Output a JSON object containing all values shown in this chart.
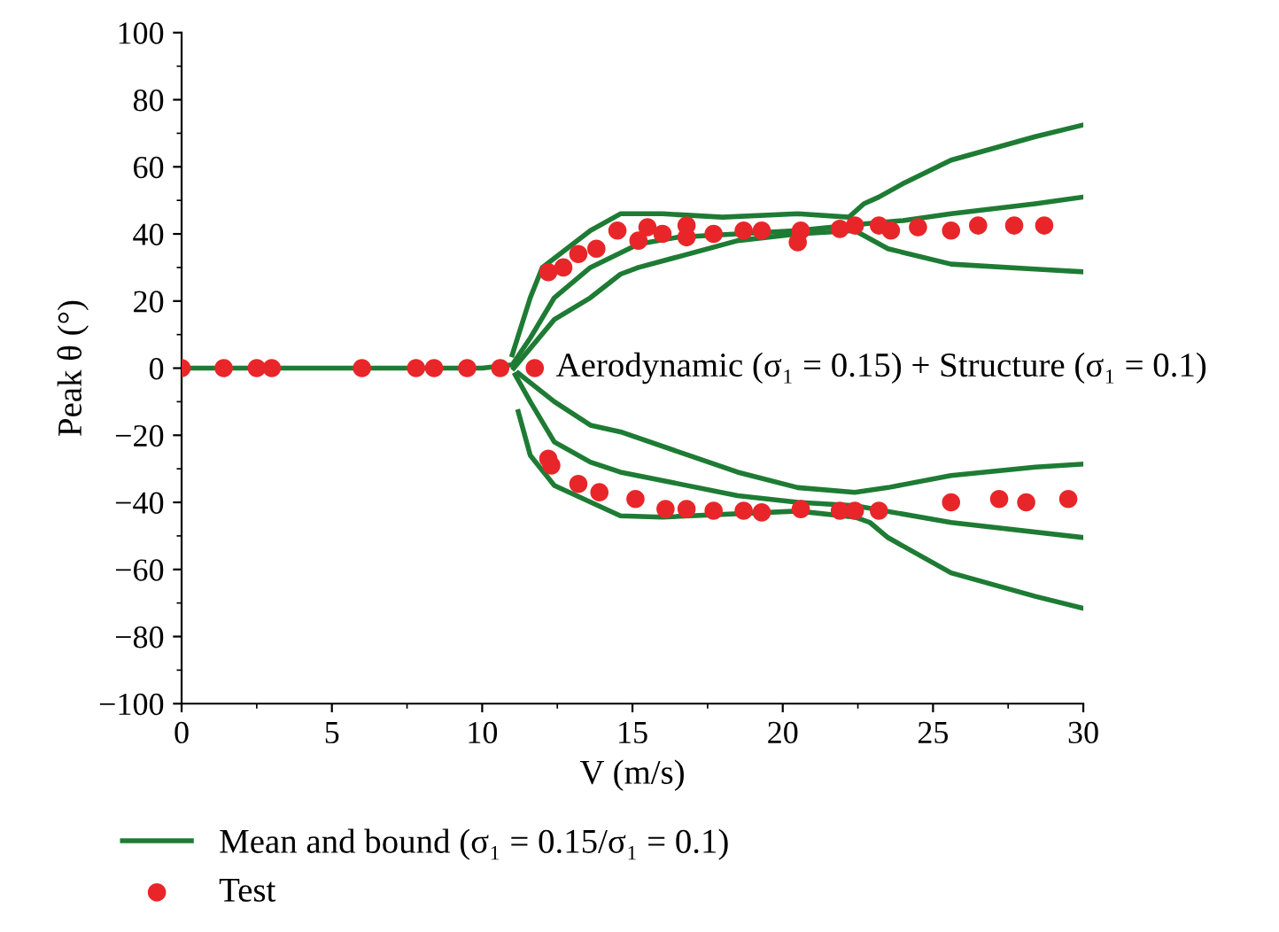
{
  "chart_data": {
    "type": "line",
    "xlabel": "V (m/s)",
    "ylabel": "Peak θ (°)",
    "xlim": [
      0,
      30
    ],
    "xticks": [
      0,
      5,
      10,
      15,
      20,
      25,
      30
    ],
    "ylim": [
      -100,
      100
    ],
    "yticks": [
      -100,
      -80,
      -60,
      -40,
      -20,
      0,
      20,
      40,
      60,
      80,
      100
    ],
    "grid": false,
    "legend": "bottom",
    "marker": "none",
    "line_style": "solid",
    "annotations": [
      "Aerodynamic (σ₁ = 0.15) + Structure (σ₁ = 0.1)"
    ],
    "series": [
      {
        "name": "Mean and bound (σ₁ = 0.15/σ₁ = 0.1)",
        "color": "#1e7b34",
        "x": [
          0,
          5,
          10,
          11,
          11.6,
          12.4,
          13.6,
          15.2,
          16.5,
          18.5,
          20.5,
          22.7,
          24,
          25.6,
          28.4,
          30
        ],
        "values": [
          0,
          0,
          0,
          1,
          9,
          21,
          30,
          37,
          39,
          40,
          41,
          43,
          44,
          46,
          49,
          51
        ]
      },
      {
        "color": "#1e7b34",
        "x": [
          11,
          11.6,
          12,
          13.6,
          14.6,
          16,
          18,
          20.5,
          22.2,
          22.7,
          23.2,
          24,
          25.6,
          28.4,
          30
        ],
        "values": [
          4,
          21,
          30,
          41,
          46,
          46,
          45,
          46,
          45,
          49,
          51,
          55,
          62,
          69,
          72.5
        ]
      },
      {
        "color": "#1e7b34",
        "x": [
          11.05,
          12.4,
          13.6,
          14.6,
          15.2,
          18.5,
          20.5,
          22.4,
          23.5,
          25.6,
          28.4,
          30
        ],
        "values": [
          0,
          14.5,
          21,
          28,
          30,
          38,
          40,
          41,
          35.6,
          31,
          29.5,
          28.7
        ]
      },
      {
        "color": "#1e7b34",
        "x": [
          11.1,
          11.6,
          12.4,
          13.6,
          14.6,
          18.5,
          20.5,
          22.4,
          25.6,
          30
        ],
        "values": [
          -2,
          -10,
          -22,
          -28,
          -31,
          -38,
          -40,
          -41,
          -46,
          -50.5
        ]
      },
      {
        "color": "#1e7b34",
        "x": [
          11.2,
          11.6,
          12.4,
          14.6,
          16,
          20.5,
          22.4,
          22.9,
          23.5,
          25.6,
          28.4,
          30
        ],
        "values": [
          -13,
          -26,
          -35,
          -44,
          -44.4,
          -42.6,
          -44.4,
          -46,
          -50.5,
          -61,
          -68,
          -71.6
        ]
      },
      {
        "color": "#1e7b34",
        "x": [
          11.2,
          12.4,
          13.6,
          14.6,
          18.5,
          20.5,
          22.4,
          23.5,
          25.6,
          28.4,
          30
        ],
        "values": [
          -1.5,
          -10,
          -17,
          -19,
          -31,
          -35.6,
          -37,
          -35.6,
          -32,
          -29.5,
          -28.6
        ]
      },
      {
        "name": "Test",
        "type": "scatter",
        "marker": "circle",
        "color": "#e8262a",
        "x": [
          0,
          1.4,
          2.5,
          3.0,
          6.0,
          7.8,
          8.4,
          9.5,
          10.6,
          11.75,
          12.2,
          12.7,
          13.2,
          13.8,
          14.5,
          15.2,
          15.5,
          16,
          16.8,
          16.8,
          17.7,
          18.7,
          19.3,
          20.6,
          20.5,
          21.9,
          22.4,
          23.2,
          23.6,
          24.5,
          25.6,
          26.5,
          27.7,
          28.7,
          12.2,
          12.3,
          13.2,
          13.9,
          15.1,
          16.1,
          16.8,
          17.7,
          18.7,
          19.3,
          20.6,
          21.9,
          22.4,
          23.2,
          25.6,
          27.2,
          28.1,
          29.5
        ],
        "values": [
          0,
          0,
          0,
          0,
          0,
          0,
          0,
          0,
          0,
          0,
          28.6,
          30,
          34,
          35.6,
          41,
          38,
          42,
          40,
          42.5,
          39,
          40,
          41,
          41,
          41,
          37.5,
          41.5,
          42.5,
          42.5,
          41,
          42,
          41,
          42.5,
          42.5,
          42.5,
          -27,
          -29,
          -34.5,
          -37,
          -39,
          -42,
          -42,
          -42.5,
          -42.5,
          -43,
          -42,
          -42.5,
          -42.5,
          -42.5,
          -40,
          -39,
          -40,
          -39
        ]
      }
    ]
  }
}
